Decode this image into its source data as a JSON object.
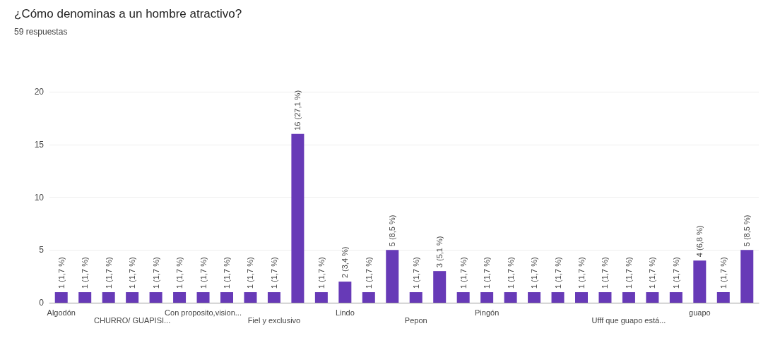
{
  "chart_data": {
    "type": "bar",
    "title": "¿Cómo denominas a un hombre atractivo?",
    "subtitle": "59 respuestas",
    "categories": [
      "Algodón",
      null,
      null,
      "CHURRO/ GUAPISI...",
      null,
      null,
      "Con proposito,vision...",
      null,
      null,
      "Fiel y exclusivo",
      null,
      null,
      "Lindo",
      null,
      null,
      "Pepon",
      null,
      null,
      "Pingón",
      null,
      null,
      null,
      null,
      null,
      "Ufff que guapo está...",
      null,
      null,
      "guapo",
      null,
      null
    ],
    "values": [
      1,
      1,
      1,
      1,
      1,
      1,
      1,
      1,
      1,
      1,
      16,
      1,
      2,
      1,
      5,
      1,
      3,
      1,
      1,
      1,
      1,
      1,
      1,
      1,
      1,
      1,
      1,
      4,
      1,
      5
    ],
    "value_labels": [
      "1 (1,7 %)",
      "1 (1,7 %)",
      "1 (1,7 %)",
      "1 (1,7 %)",
      "1 (1,7 %)",
      "1 (1,7 %)",
      "1 (1,7 %)",
      "1 (1,7 %)",
      "1 (1,7 %)",
      "1 (1,7 %)",
      "16 (27,1 %)",
      "1 (1,7 %)",
      "2 (3,4 %)",
      "1 (1,7 %)",
      "5 (8,5 %)",
      "1 (1,7 %)",
      "3 (5,1 %)",
      "1 (1,7 %)",
      "1 (1,7 %)",
      "1 (1,7 %)",
      "1 (1,7 %)",
      "1 (1,7 %)",
      "1 (1,7 %)",
      "1 (1,7 %)",
      "1 (1,7 %)",
      "1 (1,7 %)",
      "1 (1,7 %)",
      "4 (6,8 %)",
      "1 (1,7 %)",
      "5 (8,5 %)"
    ],
    "color": "#673ab7",
    "ylim": [
      0,
      20
    ],
    "yticks": [
      0,
      5,
      10,
      15,
      20
    ],
    "grid": "y"
  }
}
